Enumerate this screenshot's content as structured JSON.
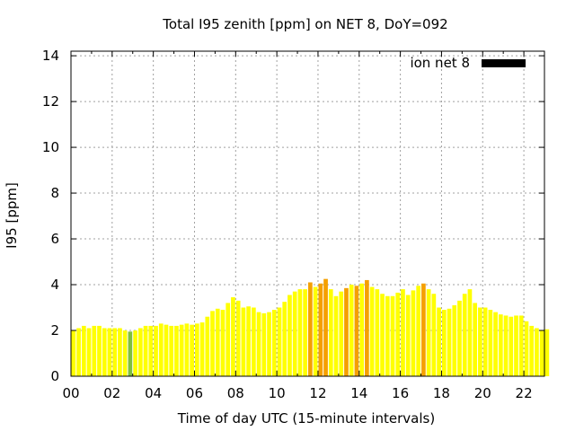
{
  "chart_data": {
    "type": "bar",
    "title": "Total I95 zenith [ppm] on NET 8, DoY=092",
    "xlabel": "Time of day UTC (15-minute intervals)",
    "ylabel": "I95 [ppm]",
    "xlim": [
      0,
      23
    ],
    "ylim": [
      0,
      14.2
    ],
    "xticks": [
      "00",
      "02",
      "04",
      "06",
      "08",
      "10",
      "12",
      "14",
      "16",
      "18",
      "20",
      "22"
    ],
    "yticks": [
      "0",
      "2",
      "4",
      "6",
      "8",
      "10",
      "12",
      "14"
    ],
    "grid": true,
    "legend_position": "top-right",
    "interval_hours": 0.25,
    "colors": {
      "yellow": "#ffff00",
      "green": "#7fbf3f",
      "orange": "#f5a000",
      "legend": "#000000"
    },
    "series": [
      {
        "name": "ion net 8",
        "values": [
          2.0,
          2.1,
          2.2,
          2.1,
          2.2,
          2.2,
          2.1,
          2.1,
          2.1,
          2.1,
          2.0,
          1.95,
          2.0,
          2.1,
          2.2,
          2.2,
          2.2,
          2.3,
          2.25,
          2.2,
          2.2,
          2.25,
          2.3,
          2.25,
          2.3,
          2.35,
          2.6,
          2.85,
          2.95,
          2.9,
          3.2,
          3.45,
          3.3,
          3.0,
          3.05,
          3.0,
          2.8,
          2.75,
          2.8,
          2.9,
          3.0,
          3.25,
          3.55,
          3.7,
          3.8,
          3.8,
          4.1,
          3.9,
          4.05,
          4.25,
          3.8,
          3.5,
          3.7,
          3.85,
          4.0,
          3.95,
          4.05,
          4.2,
          3.9,
          3.8,
          3.6,
          3.5,
          3.5,
          3.65,
          3.8,
          3.55,
          3.75,
          3.95,
          4.05,
          3.8,
          3.6,
          3.0,
          2.9,
          2.95,
          3.1,
          3.3,
          3.6,
          3.8,
          3.2,
          3.0,
          3.0,
          2.9,
          2.8,
          2.7,
          2.65,
          2.6,
          2.65,
          2.65,
          2.4,
          2.2,
          2.1,
          2.0,
          2.05
        ],
        "highlights": {
          "11": "green",
          "46": "orange",
          "48": "orange",
          "49": "orange",
          "53": "orange",
          "55": "orange",
          "57": "orange",
          "68": "orange"
        }
      }
    ]
  }
}
